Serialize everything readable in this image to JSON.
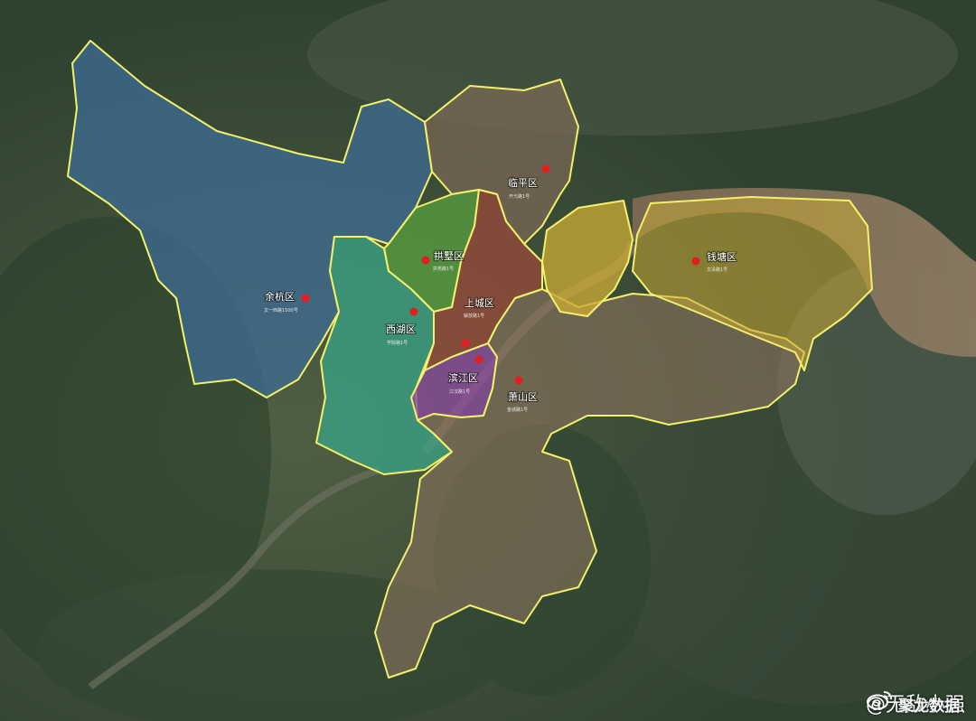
{
  "map": {
    "districts": [
      {
        "id": "yuhang",
        "name": "余杭区",
        "sub": "文一西路1500号",
        "color": "#3f6e98"
      },
      {
        "id": "linping",
        "name": "临平区",
        "sub": "开元路1号",
        "color": "#7b6a58"
      },
      {
        "id": "gongshu",
        "name": "拱墅区",
        "sub": "拱苑路1号",
        "color": "#58a040"
      },
      {
        "id": "xihu",
        "name": "西湖区",
        "sub": "学院路1号",
        "color": "#3aa487"
      },
      {
        "id": "shangcheng",
        "name": "上城区",
        "sub": "解放路1号",
        "color": "#9a4a3a"
      },
      {
        "id": "binjiang",
        "name": "滨江区",
        "sub": "江汉路1号",
        "color": "#8a4a9e"
      },
      {
        "id": "xiaoshan",
        "name": "萧山区",
        "sub": "金城路1号",
        "color": "#86705c"
      },
      {
        "id": "qiantang",
        "name": "钱塘区",
        "sub": "文泽路1号",
        "color": "#c8a936"
      }
    ],
    "border_color": "#f3f06a",
    "seat_marker_color": "#e02020"
  },
  "watermark": {
    "text": "@无敌小强",
    "overlay": "聚龙数据"
  }
}
